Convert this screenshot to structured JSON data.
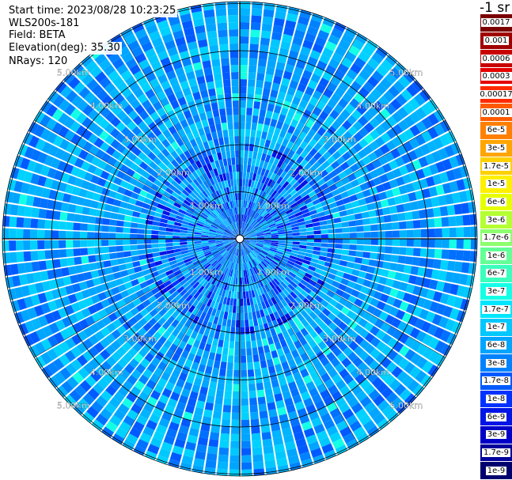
{
  "header": {
    "start_time": "Start time: 2023/08/28 10:23:25",
    "instrument": "WLS200s-181",
    "field": "Field: BETA",
    "elevation": "Elevation(deg): 35.30",
    "nrays": "NRays: 120"
  },
  "chart_data": {
    "type": "heatmap",
    "projection": "polar (plan position indicator)",
    "field": "BETA",
    "n_rays": 120,
    "elevation_deg": 35.3,
    "range_rings_km": [
      1.0,
      2.0,
      3.0,
      4.0,
      5.0
    ],
    "ring_labels": [
      "1.00km",
      "2.00km",
      "3.00km",
      "4.00km",
      "5.00km"
    ],
    "colorbar": {
      "units_label": "-1 sr",
      "segments": [
        {
          "label": "0.0017",
          "color": "#7a0000"
        },
        {
          "label": "0.001",
          "color": "#a00000"
        },
        {
          "label": "0.0006",
          "color": "#c80000"
        },
        {
          "label": "0.0003",
          "color": "#e60000"
        },
        {
          "label": "0.00017",
          "color": "#ff2a00"
        },
        {
          "label": "0.0001",
          "color": "#ff5a00"
        },
        {
          "label": "6e-5",
          "color": "#ff8000"
        },
        {
          "label": "3e-5",
          "color": "#ffa500"
        },
        {
          "label": "1.7e-5",
          "color": "#ffd000"
        },
        {
          "label": "1e-5",
          "color": "#fff000"
        },
        {
          "label": "6e-6",
          "color": "#e6ff00"
        },
        {
          "label": "3e-6",
          "color": "#b4ff32"
        },
        {
          "label": "1.7e-6",
          "color": "#8cff6e"
        },
        {
          "label": "1e-6",
          "color": "#64ff96"
        },
        {
          "label": "6e-7",
          "color": "#3cffbe"
        },
        {
          "label": "3e-7",
          "color": "#14ffe6"
        },
        {
          "label": "1.7e-7",
          "color": "#00e6ff"
        },
        {
          "label": "1e-7",
          "color": "#00c8ff"
        },
        {
          "label": "6e-8",
          "color": "#00a5ff"
        },
        {
          "label": "3e-8",
          "color": "#0082ff"
        },
        {
          "label": "1.7e-8",
          "color": "#005aff"
        },
        {
          "label": "1e-8",
          "color": "#0032ff"
        },
        {
          "label": "6e-9",
          "color": "#0014e6"
        },
        {
          "label": "3e-9",
          "color": "#0000c8"
        },
        {
          "label": "1.7e-9",
          "color": "#00009b"
        },
        {
          "label": "1e-9",
          "color": "#00006e"
        }
      ]
    },
    "dominant_colors": [
      "#00a5ff",
      "#0082ff",
      "#00c8ff",
      "#005aff"
    ],
    "grid": true
  }
}
